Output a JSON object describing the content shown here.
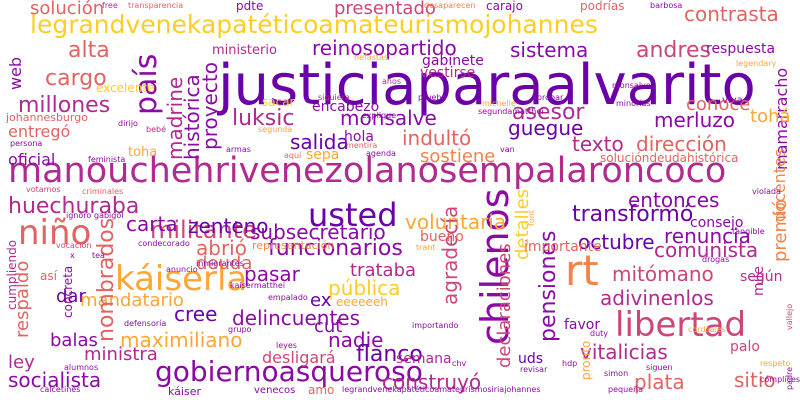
{
  "word_cloud": {
    "palette": [
      "#6a00a8",
      "#8b0aa5",
      "#b12a90",
      "#cc4778",
      "#e16462",
      "#f2844b",
      "#fca636",
      "#fcce25"
    ],
    "words": [
      {
        "text": "justiciaparaalvarito",
        "color": "#6a00a8"
      },
      {
        "text": "manouchehrivenezolanosempalaroncoco",
        "color": "#b12a90"
      },
      {
        "text": "legrandvenekapatéticoamateurismojohannes",
        "color": "#fcce25"
      },
      {
        "text": "gobiernoasqueroso",
        "color": "#8b0aa5"
      },
      {
        "text": "rt",
        "color": "#f2844b"
      },
      {
        "text": "libertad",
        "color": "#cc4778"
      },
      {
        "text": "chilenos",
        "color": "#8b0aa5"
      },
      {
        "text": "usted",
        "color": "#6a00a8"
      },
      {
        "text": "káiserla",
        "color": "#fca636"
      },
      {
        "text": "niño",
        "color": "#e16462"
      },
      {
        "text": "país",
        "color": "#8b0aa5"
      },
      {
        "text": "huechuraba",
        "color": "#b12a90"
      },
      {
        "text": "militante",
        "color": "#cc4778"
      },
      {
        "text": "luksic",
        "color": "#b12a90"
      },
      {
        "text": "reinosopartido",
        "color": "#8b0aa5"
      },
      {
        "text": "contrasta",
        "color": "#e16462"
      },
      {
        "text": "sistema",
        "color": "#8b0aa5"
      },
      {
        "text": "andres",
        "color": "#cc4778"
      },
      {
        "text": "alta",
        "color": "#e16462"
      },
      {
        "text": "cargo",
        "color": "#e16462"
      },
      {
        "text": "millones",
        "color": "#b12a90"
      },
      {
        "text": "solución",
        "color": "#e16462"
      },
      {
        "text": "presentado",
        "color": "#cc4778"
      },
      {
        "text": "asesor",
        "color": "#b12a90"
      },
      {
        "text": "guegue",
        "color": "#6a00a8"
      },
      {
        "text": "merluzo",
        "color": "#8b0aa5"
      },
      {
        "text": "indultó",
        "color": "#e16462"
      },
      {
        "text": "texto",
        "color": "#b12a90"
      },
      {
        "text": "dirección",
        "color": "#e16462"
      },
      {
        "text": "monsalve",
        "color": "#8b0aa5"
      },
      {
        "text": "salida",
        "color": "#6a00a8"
      },
      {
        "text": "madrine",
        "color": "#b12a90"
      },
      {
        "text": "histórica",
        "color": "#8b0aa5"
      },
      {
        "text": "proyecto",
        "color": "#8b0aa5"
      },
      {
        "text": "conoce",
        "color": "#e16462"
      },
      {
        "text": "sostiene",
        "color": "#f2844b"
      },
      {
        "text": "voluntaria",
        "color": "#fca636"
      },
      {
        "text": "entonces",
        "color": "#8b0aa5"
      },
      {
        "text": "transformó",
        "color": "#6a00a8"
      },
      {
        "text": "carta",
        "color": "#8b0aa5"
      },
      {
        "text": "zenteno",
        "color": "#6a00a8"
      },
      {
        "text": "subsecretario",
        "color": "#8b0aa5"
      },
      {
        "text": "funcionarios",
        "color": "#8b0aa5"
      },
      {
        "text": "abrió",
        "color": "#e16462"
      },
      {
        "text": "deuda",
        "color": "#e16462"
      },
      {
        "text": "agradecía",
        "color": "#cc4778"
      },
      {
        "text": "octubre",
        "color": "#6a00a8"
      },
      {
        "text": "renuncia",
        "color": "#8b0aa5"
      },
      {
        "text": "comunista",
        "color": "#b12a90"
      },
      {
        "text": "pasar",
        "color": "#8b0aa5"
      },
      {
        "text": "trataba",
        "color": "#b12a90"
      },
      {
        "text": "mitómano",
        "color": "#cc4778"
      },
      {
        "text": "adivinenlos",
        "color": "#b12a90"
      },
      {
        "text": "pública",
        "color": "#fcce25"
      },
      {
        "text": "pensiones",
        "color": "#8b0aa5"
      },
      {
        "text": "mandatario",
        "color": "#fca636"
      },
      {
        "text": "nombrados",
        "color": "#e16462"
      },
      {
        "text": "cree",
        "color": "#6a00a8"
      },
      {
        "text": "delincuentes",
        "color": "#8b0aa5"
      },
      {
        "text": "maximiliano",
        "color": "#fca636"
      },
      {
        "text": "nadie",
        "color": "#8b0aa5"
      },
      {
        "text": "vitalicias",
        "color": "#b12a90"
      },
      {
        "text": "flanco",
        "color": "#6a00a8"
      },
      {
        "text": "balas",
        "color": "#8b0aa5"
      },
      {
        "text": "ministra",
        "color": "#b12a90"
      },
      {
        "text": "socialista",
        "color": "#8b0aa5"
      },
      {
        "text": "desligará",
        "color": "#cc4778"
      },
      {
        "text": "construyó",
        "color": "#b12a90"
      },
      {
        "text": "plata",
        "color": "#e16462"
      },
      {
        "text": "sitio",
        "color": "#e16462"
      },
      {
        "text": "premió",
        "color": "#f2844b"
      },
      {
        "text": "detalles",
        "color": "#fcce25"
      },
      {
        "text": "declaraciones",
        "color": "#cc4778"
      },
      {
        "text": "ley",
        "color": "#b12a90"
      },
      {
        "text": "respaldo",
        "color": "#e16462"
      },
      {
        "text": "dar",
        "color": "#6a00a8"
      },
      {
        "text": "oficial",
        "color": "#8b0aa5"
      },
      {
        "text": "entregó",
        "color": "#e16462"
      },
      {
        "text": "web",
        "color": "#8b0aa5"
      },
      {
        "text": "mamarracho",
        "color": "#8b0aa5"
      },
      {
        "text": "tohá",
        "color": "#fca636"
      },
      {
        "text": "docentes",
        "color": "#f2844b"
      },
      {
        "text": "respuesta",
        "color": "#8b0aa5"
      },
      {
        "text": "ministerio",
        "color": "#b12a90"
      },
      {
        "text": "gabinete",
        "color": "#8b0aa5"
      },
      {
        "text": "vestirse",
        "color": "#b12a90"
      },
      {
        "text": "encabezó",
        "color": "#8b0aa5"
      },
      {
        "text": "cut",
        "color": "#8b0aa5"
      },
      {
        "text": "ex",
        "color": "#6a00a8"
      },
      {
        "text": "semana",
        "color": "#b12a90"
      },
      {
        "text": "uds",
        "color": "#6a00a8"
      },
      {
        "text": "favor",
        "color": "#8b0aa5"
      },
      {
        "text": "palo",
        "color": "#cc4778"
      },
      {
        "text": "bueno",
        "color": "#e16462"
      },
      {
        "text": "importante",
        "color": "#e16462"
      },
      {
        "text": "consejo",
        "color": "#8b0aa5"
      },
      {
        "text": "según",
        "color": "#b12a90"
      },
      {
        "text": "mile",
        "color": "#b12a90"
      },
      {
        "text": "hola",
        "color": "#8b0aa5"
      },
      {
        "text": "sepa",
        "color": "#fca636"
      },
      {
        "text": "toha",
        "color": "#fca636"
      },
      {
        "text": "excelente",
        "color": "#fcce25"
      },
      {
        "text": "johannesburgo",
        "color": "#e16462"
      },
      {
        "text": "carajo",
        "color": "#8b0aa5"
      },
      {
        "text": "podrías",
        "color": "#e16462"
      },
      {
        "text": "pdte",
        "color": "#8b0aa5"
      },
      {
        "text": "sacar",
        "color": "#fcce25"
      },
      {
        "text": "representación",
        "color": "#f2844b"
      },
      {
        "text": "eeeeeeh",
        "color": "#fca636"
      },
      {
        "text": "solucióndeudahistórica",
        "color": "#e16462"
      },
      {
        "text": "cumpliendo",
        "color": "#b12a90"
      },
      {
        "text": "amo",
        "color": "#e16462"
      },
      {
        "text": "así",
        "color": "#e16462"
      },
      {
        "text": "concreta",
        "color": "#8b0aa5"
      },
      {
        "text": "pronto",
        "color": "#fca636"
      },
      {
        "text": "legrandvenekapatéticoamateurismosiriajohannes",
        "color": "#8b0aa5"
      },
      {
        "text": "káiser",
        "color": "#8b0aa5"
      },
      {
        "text": "venecos",
        "color": "#8b0aa5"
      },
      {
        "text": "calcetines",
        "color": "#8b0aa5"
      },
      {
        "text": "free",
        "color": "#b12a90"
      },
      {
        "text": "transparencia",
        "color": "#e16462"
      },
      {
        "text": "desaparecen",
        "color": "#f2844b"
      },
      {
        "text": "barbosa",
        "color": "#8b0aa5"
      },
      {
        "text": "años",
        "color": "#b12a90"
      },
      {
        "text": "nefastas",
        "color": "#fca636"
      },
      {
        "text": "legendary",
        "color": "#fca636"
      },
      {
        "text": "siquiera",
        "color": "#b12a90"
      },
      {
        "text": "prueba",
        "color": "#8b0aa5"
      },
      {
        "text": "aprobar",
        "color": "#8b0aa5"
      },
      {
        "text": "michelle",
        "color": "#fca636"
      },
      {
        "text": "minorías",
        "color": "#8b0aa5"
      },
      {
        "text": "explique",
        "color": "#8b0aa5"
      },
      {
        "text": "segundamatthei",
        "color": "#8b0aa5"
      },
      {
        "text": "bebé",
        "color": "#b12a90"
      },
      {
        "text": "dirijo",
        "color": "#8b0aa5"
      },
      {
        "text": "segunda",
        "color": "#fca636"
      },
      {
        "text": "mentira",
        "color": "#e16462"
      },
      {
        "text": "armas",
        "color": "#8b0aa5"
      },
      {
        "text": "agenda",
        "color": "#8b0aa5"
      },
      {
        "text": "persona",
        "color": "#8b0aa5"
      },
      {
        "text": "feminista",
        "color": "#8b0aa5"
      },
      {
        "text": "aquí",
        "color": "#e16462"
      },
      {
        "text": "van",
        "color": "#8b0aa5"
      },
      {
        "text": "violada",
        "color": "#8b0aa5"
      },
      {
        "text": "votamos",
        "color": "#cc4778"
      },
      {
        "text": "criminales",
        "color": "#e16462"
      },
      {
        "text": "ignoro",
        "color": "#8b0aa5"
      },
      {
        "text": "gabigol",
        "color": "#8b0aa5"
      },
      {
        "text": "font",
        "color": "#fca636"
      },
      {
        "text": "tangible",
        "color": "#8b0aa5"
      },
      {
        "text": "vocación",
        "color": "#cc4778"
      },
      {
        "text": "condecorado",
        "color": "#8b0aa5"
      },
      {
        "text": "trant",
        "color": "#fca636"
      },
      {
        "text": "drogas",
        "color": "#8b0aa5"
      },
      {
        "text": "inmigrantes",
        "color": "#8b0aa5"
      },
      {
        "text": "anuncio",
        "color": "#8b0aa5"
      },
      {
        "text": "empalado",
        "color": "#8b0aa5"
      },
      {
        "text": "defensoría",
        "color": "#8b0aa5"
      },
      {
        "text": "grupo",
        "color": "#8b0aa5"
      },
      {
        "text": "importando",
        "color": "#8b0aa5"
      },
      {
        "text": "duty",
        "color": "#8b0aa5"
      },
      {
        "text": "kaisermatthei",
        "color": "#8b0aa5"
      },
      {
        "text": "cordsales",
        "color": "#fca636"
      },
      {
        "text": "leyes",
        "color": "#8b0aa5"
      },
      {
        "text": "alumnos",
        "color": "#8b0aa5"
      },
      {
        "text": "revisar",
        "color": "#8b0aa5"
      },
      {
        "text": "simon",
        "color": "#8b0aa5"
      },
      {
        "text": "siguen",
        "color": "#8b0aa5"
      },
      {
        "text": "pequeña",
        "color": "#8b0aa5"
      },
      {
        "text": "respeto",
        "color": "#fca636"
      },
      {
        "text": "cómplices",
        "color": "#8b0aa5"
      },
      {
        "text": "padre",
        "color": "#8b0aa5"
      },
      {
        "text": "vallejo",
        "color": "#cc4778"
      },
      {
        "text": "viva",
        "color": "#8b0aa5"
      },
      {
        "text": "monsalve",
        "color": "#8b0aa5"
      },
      {
        "text": "tea",
        "color": "#8b0aa5"
      },
      {
        "text": "x",
        "color": "#8b0aa5"
      },
      {
        "text": "chv",
        "color": "#8b0aa5"
      },
      {
        "text": "hdp",
        "color": "#8b0aa5"
      }
    ]
  }
}
